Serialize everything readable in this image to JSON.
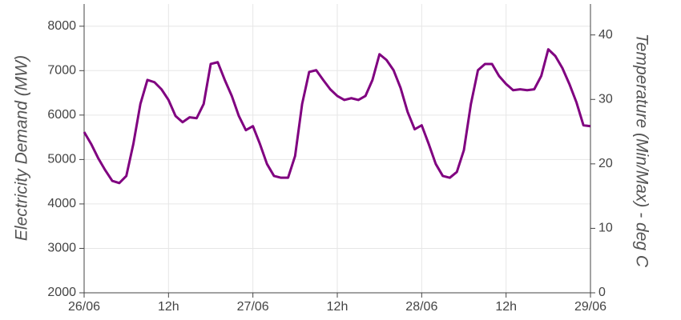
{
  "chart_data": {
    "type": "line",
    "ylabel": "Electricity Demand (MW)",
    "y2label": "Temperature (Min/Max) - deg C",
    "x": [
      0,
      1,
      2,
      3,
      4,
      5,
      6,
      7,
      8,
      9,
      10,
      11,
      12,
      13,
      14,
      15,
      16,
      17,
      18,
      19,
      20,
      21,
      22,
      23,
      24,
      25,
      26,
      27,
      28,
      29,
      30,
      31,
      32,
      33,
      34,
      35,
      36,
      37,
      38,
      39,
      40,
      41,
      42,
      43,
      44,
      45,
      46,
      47,
      48,
      49,
      50,
      51,
      52,
      53,
      54,
      55,
      56,
      57,
      58,
      59,
      60,
      61,
      62,
      63,
      64,
      65,
      66,
      67,
      68,
      69,
      70,
      71,
      72
    ],
    "values": [
      5620,
      5350,
      5030,
      4760,
      4520,
      4470,
      4630,
      5350,
      6250,
      6790,
      6740,
      6580,
      6340,
      5980,
      5840,
      5950,
      5930,
      6250,
      7150,
      7190,
      6790,
      6430,
      5980,
      5660,
      5750,
      5350,
      4900,
      4630,
      4590,
      4590,
      5080,
      6250,
      6970,
      7010,
      6790,
      6580,
      6430,
      6340,
      6380,
      6340,
      6430,
      6790,
      7370,
      7240,
      7010,
      6610,
      6070,
      5680,
      5770,
      5350,
      4900,
      4630,
      4590,
      4720,
      5210,
      6250,
      7010,
      7150,
      7150,
      6880,
      6700,
      6560,
      6580,
      6560,
      6580,
      6880,
      7480,
      7330,
      7060,
      6700,
      6290,
      5770,
      5750
    ],
    "color": "#800080",
    "xlim": [
      0,
      72
    ],
    "xticks": [
      {
        "value": 0,
        "label": "26/06"
      },
      {
        "value": 12,
        "label": "12h"
      },
      {
        "value": 24,
        "label": "27/06"
      },
      {
        "value": 36,
        "label": "12h"
      },
      {
        "value": 48,
        "label": "28/06"
      },
      {
        "value": 60,
        "label": "12h"
      },
      {
        "value": 72,
        "label": "29/06"
      }
    ],
    "ylim": [
      2000,
      8500
    ],
    "yticks": [
      2000,
      3000,
      4000,
      5000,
      6000,
      7000,
      8000
    ],
    "y2lim": [
      0,
      44.8
    ],
    "y2ticks": [
      0,
      10,
      20,
      30,
      40
    ],
    "grid": true
  }
}
